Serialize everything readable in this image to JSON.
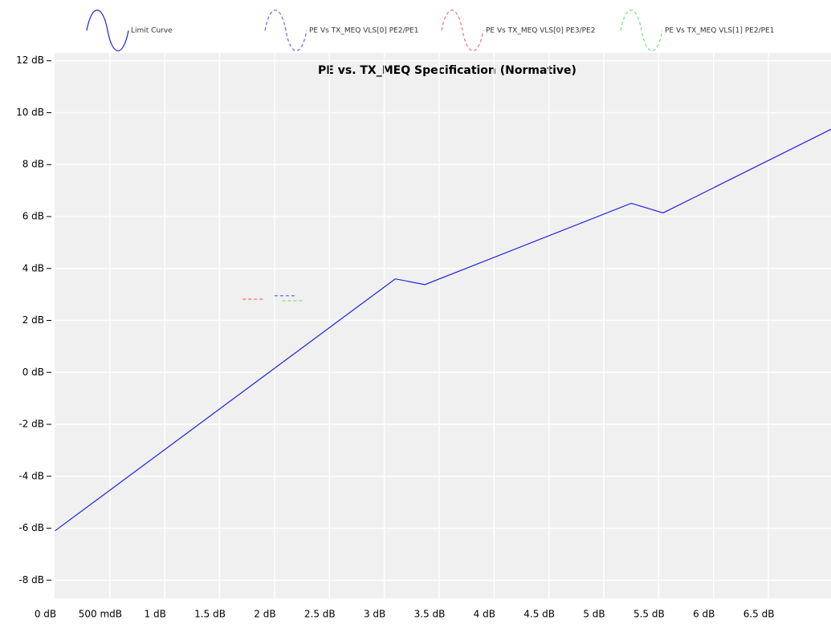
{
  "chart_data": {
    "type": "line",
    "title": "PE vs. TX_MEQ Specification (Normative)",
    "series": [
      {
        "name": "Limit Curve",
        "color": "#2020e0",
        "dash": false,
        "x": [
          0,
          3.1,
          3.37,
          5.25,
          5.54,
          7.07
        ],
        "values": [
          -6.1,
          3.6,
          3.38,
          6.51,
          6.14,
          9.36
        ]
      },
      {
        "name": "PE Vs TX_MEQ VLS[0] PE2/PE1",
        "color": "#6868f0",
        "dash": true,
        "x": [
          2.0,
          2.2
        ],
        "values": [
          2.95,
          2.95
        ]
      },
      {
        "name": "PE Vs TX_MEQ VLS[0] PE3/PE2",
        "color": "#f07070",
        "dash": true,
        "x": [
          1.71,
          1.91
        ],
        "values": [
          2.82,
          2.82
        ]
      },
      {
        "name": "PE Vs TX_MEQ VLS[1] PE2/PE1",
        "color": "#70e870",
        "dash": true,
        "x": [
          2.07,
          2.26
        ],
        "values": [
          2.76,
          2.76
        ]
      }
    ],
    "xlim": [
      0,
      7.07
    ],
    "ylim": [
      -8.7,
      12.3
    ],
    "xticks": [
      {
        "value": 0,
        "label": "0 dB"
      },
      {
        "value": 0.5,
        "label": "500 mdB"
      },
      {
        "value": 1,
        "label": "1 dB"
      },
      {
        "value": 1.5,
        "label": "1.5 dB"
      },
      {
        "value": 2,
        "label": "2 dB"
      },
      {
        "value": 2.5,
        "label": "2.5 dB"
      },
      {
        "value": 3,
        "label": "3 dB"
      },
      {
        "value": 3.5,
        "label": "3.5 dB"
      },
      {
        "value": 4,
        "label": "4 dB"
      },
      {
        "value": 4.5,
        "label": "4.5 dB"
      },
      {
        "value": 5,
        "label": "5 dB"
      },
      {
        "value": 5.5,
        "label": "5.5 dB"
      },
      {
        "value": 6,
        "label": "6 dB"
      },
      {
        "value": 6.5,
        "label": "6.5 dB"
      }
    ],
    "yticks": [
      {
        "value": -8,
        "label": "-8 dB"
      },
      {
        "value": -6,
        "label": "-6 dB"
      },
      {
        "value": -4,
        "label": "-4 dB"
      },
      {
        "value": -2,
        "label": "-2 dB"
      },
      {
        "value": 0,
        "label": "0 dB"
      },
      {
        "value": 2,
        "label": "2 dB"
      },
      {
        "value": 4,
        "label": "4 dB"
      },
      {
        "value": 6,
        "label": "6 dB"
      },
      {
        "value": 8,
        "label": "8 dB"
      },
      {
        "value": 10,
        "label": "10 dB"
      },
      {
        "value": 12,
        "label": "12 dB"
      }
    ],
    "grid": true,
    "legend": "top"
  }
}
